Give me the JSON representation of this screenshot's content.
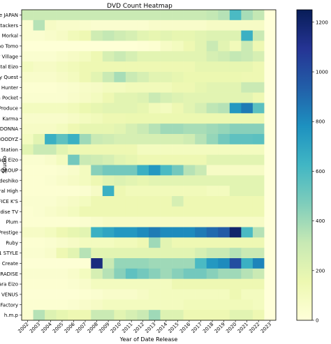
{
  "chart_data": {
    "type": "heatmap",
    "title": "DVD Count Heatmap",
    "xlabel": "Year of Date Release",
    "ylabel": "Studio",
    "x": [
      "2002",
      "2003",
      "2004",
      "2005",
      "2006",
      "2007",
      "2008",
      "2009",
      "2010",
      "2011",
      "2012",
      "2013",
      "2014",
      "2015",
      "2016",
      "2017",
      "2018",
      "2019",
      "2020",
      "2021",
      "2022",
      "2023"
    ],
    "y": [
      "Alice JAPAN",
      "Attackers",
      "Big Morkal",
      "Celeb no Tomo",
      "Center Village",
      "Crystal Eizo",
      "Glory Quest",
      "Hunter",
      "Idea Pocket",
      "K M Produce",
      "Karma",
      "MADONNA",
      "MOODYZ",
      "Media Station",
      "Momotaro Eizo",
      "NEXT GROUP",
      "Nadeshiko",
      "Natural High",
      "OFFICE K'S",
      "Paradise TV",
      "Plum",
      "Prestige",
      "Ruby",
      "S1 NO.1 STYLE",
      "SOD Create",
      "STAR PARADISE",
      "Takara Eizo",
      "VENUS",
      "Wanz Factory",
      "h.m.p"
    ],
    "z": [
      [
        300,
        300,
        300,
        300,
        300,
        300,
        300,
        300,
        300,
        300,
        300,
        300,
        300,
        300,
        300,
        300,
        320,
        350,
        600,
        380,
        320,
        0
      ],
      [
        40,
        350,
        80,
        60,
        60,
        50,
        40,
        40,
        40,
        40,
        40,
        60,
        60,
        60,
        60,
        60,
        80,
        80,
        80,
        80,
        80,
        0
      ],
      [
        40,
        40,
        60,
        80,
        120,
        150,
        280,
        320,
        280,
        250,
        200,
        180,
        200,
        180,
        180,
        200,
        220,
        220,
        220,
        650,
        300,
        0
      ],
      [
        10,
        10,
        10,
        10,
        10,
        10,
        10,
        10,
        10,
        10,
        20,
        30,
        80,
        100,
        150,
        200,
        300,
        200,
        120,
        300,
        150,
        0
      ],
      [
        40,
        40,
        40,
        60,
        80,
        100,
        150,
        250,
        300,
        250,
        200,
        200,
        200,
        200,
        200,
        200,
        250,
        280,
        320,
        300,
        250,
        0
      ],
      [
        100,
        80,
        80,
        100,
        120,
        150,
        150,
        150,
        150,
        150,
        150,
        150,
        150,
        150,
        150,
        180,
        180,
        180,
        180,
        180,
        150,
        0
      ],
      [
        60,
        60,
        60,
        80,
        100,
        150,
        200,
        300,
        380,
        300,
        250,
        200,
        200,
        180,
        160,
        160,
        160,
        160,
        160,
        150,
        150,
        0
      ],
      [
        30,
        30,
        30,
        40,
        50,
        70,
        80,
        100,
        100,
        120,
        120,
        120,
        120,
        150,
        150,
        180,
        200,
        200,
        200,
        300,
        300,
        0
      ],
      [
        40,
        40,
        40,
        40,
        60,
        80,
        100,
        150,
        200,
        200,
        220,
        300,
        250,
        220,
        200,
        200,
        200,
        200,
        200,
        200,
        150,
        0
      ],
      [
        100,
        100,
        100,
        100,
        120,
        160,
        180,
        200,
        200,
        200,
        180,
        120,
        100,
        150,
        200,
        250,
        330,
        350,
        750,
        850,
        560,
        0
      ],
      [
        60,
        60,
        60,
        60,
        80,
        100,
        120,
        150,
        150,
        160,
        160,
        160,
        160,
        160,
        160,
        160,
        160,
        160,
        160,
        160,
        160,
        0
      ],
      [
        80,
        80,
        80,
        100,
        150,
        180,
        180,
        180,
        200,
        250,
        300,
        350,
        400,
        400,
        380,
        380,
        400,
        420,
        450,
        450,
        450,
        0
      ],
      [
        100,
        200,
        650,
        550,
        650,
        400,
        300,
        280,
        250,
        250,
        250,
        250,
        250,
        250,
        280,
        350,
        420,
        500,
        550,
        550,
        560,
        0
      ],
      [
        200,
        300,
        300,
        200,
        150,
        150,
        150,
        150,
        150,
        150,
        100,
        100,
        100,
        100,
        100,
        100,
        100,
        100,
        100,
        100,
        100,
        0
      ],
      [
        40,
        40,
        60,
        100,
        500,
        300,
        280,
        250,
        200,
        180,
        150,
        150,
        150,
        150,
        150,
        150,
        200,
        200,
        200,
        200,
        200,
        0
      ],
      [
        30,
        30,
        30,
        40,
        60,
        100,
        450,
        500,
        500,
        500,
        650,
        750,
        600,
        500,
        350,
        300,
        80,
        80,
        80,
        80,
        80,
        0
      ],
      [
        30,
        30,
        40,
        60,
        80,
        100,
        150,
        200,
        220,
        200,
        180,
        200,
        200,
        200,
        200,
        200,
        200,
        200,
        200,
        200,
        200,
        0
      ],
      [
        30,
        30,
        30,
        30,
        30,
        40,
        80,
        650,
        150,
        120,
        120,
        120,
        120,
        120,
        120,
        120,
        100,
        100,
        200,
        200,
        200,
        0
      ],
      [
        40,
        40,
        40,
        60,
        80,
        100,
        150,
        150,
        150,
        150,
        150,
        150,
        150,
        250,
        150,
        150,
        150,
        150,
        150,
        150,
        150,
        0
      ],
      [
        30,
        40,
        60,
        80,
        100,
        150,
        150,
        150,
        150,
        150,
        150,
        150,
        150,
        150,
        150,
        150,
        150,
        150,
        150,
        150,
        150,
        0
      ],
      [
        30,
        30,
        30,
        30,
        30,
        40,
        60,
        80,
        80,
        80,
        80,
        80,
        80,
        80,
        80,
        80,
        80,
        80,
        80,
        80,
        80,
        0
      ],
      [
        80,
        80,
        100,
        150,
        180,
        200,
        650,
        700,
        750,
        750,
        800,
        850,
        800,
        800,
        800,
        850,
        900,
        950,
        1200,
        600,
        350,
        0
      ],
      [
        30,
        30,
        40,
        60,
        80,
        100,
        100,
        100,
        120,
        120,
        150,
        400,
        200,
        150,
        150,
        150,
        150,
        150,
        150,
        150,
        150,
        0
      ],
      [
        40,
        40,
        60,
        150,
        200,
        350,
        200,
        200,
        200,
        200,
        200,
        200,
        200,
        200,
        200,
        250,
        300,
        300,
        350,
        300,
        300,
        0
      ],
      [
        20,
        20,
        20,
        20,
        20,
        20,
        1150,
        300,
        420,
        420,
        420,
        400,
        400,
        400,
        400,
        600,
        750,
        800,
        1000,
        650,
        820,
        0
      ],
      [
        40,
        40,
        40,
        40,
        60,
        100,
        250,
        350,
        450,
        550,
        500,
        450,
        400,
        450,
        500,
        500,
        450,
        400,
        400,
        350,
        300,
        0
      ],
      [
        30,
        30,
        30,
        30,
        40,
        60,
        100,
        100,
        100,
        100,
        100,
        100,
        100,
        150,
        150,
        150,
        150,
        150,
        150,
        150,
        150,
        0
      ],
      [
        20,
        20,
        20,
        20,
        20,
        30,
        40,
        60,
        60,
        60,
        80,
        100,
        100,
        100,
        100,
        100,
        100,
        100,
        150,
        100,
        100,
        0
      ],
      [
        30,
        30,
        30,
        30,
        40,
        60,
        80,
        100,
        100,
        100,
        100,
        100,
        100,
        100,
        120,
        120,
        120,
        120,
        120,
        120,
        100,
        0
      ],
      [
        40,
        350,
        220,
        180,
        150,
        150,
        300,
        300,
        200,
        250,
        300,
        400,
        220,
        220,
        150,
        150,
        150,
        150,
        200,
        200,
        150,
        0
      ]
    ],
    "colorbar_ticks": [
      "0",
      "200",
      "400",
      "600",
      "800",
      "1000",
      "1200"
    ],
    "zlim": [
      0,
      1250
    ],
    "colormap": "YlGnBu",
    "grid": false,
    "legend": "colorbar-right"
  }
}
